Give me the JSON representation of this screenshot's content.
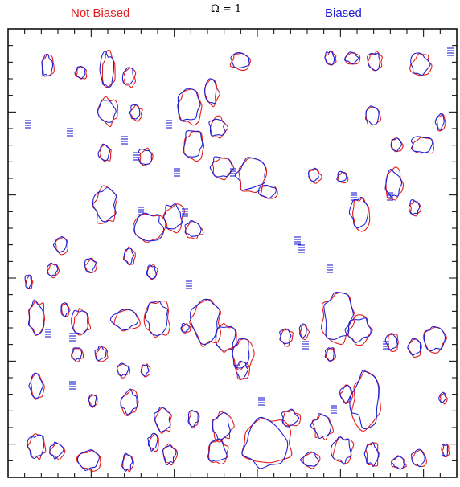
{
  "labels": {
    "left": "Not Biased",
    "center": "Ω  =  1",
    "right": "Biased"
  },
  "colors": {
    "not_biased": "#e41a1c",
    "biased": "#1f1fd6",
    "frame": "#000000"
  }
}
